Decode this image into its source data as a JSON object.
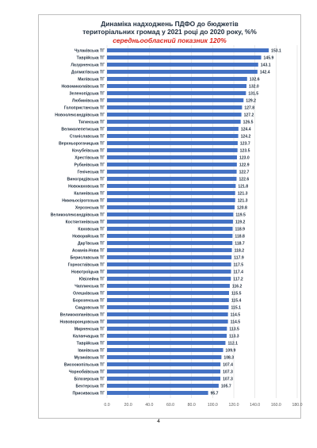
{
  "page_number": "4",
  "chart_data": {
    "type": "bar",
    "orientation": "horizontal",
    "title": "Динаміка надходжень ПДФО до бюджетів територіальних громад  у 2021 році до 2020 року, %%",
    "title_lines": [
      "Динаміка надходжень ПДФО до бюджетів",
      "територіальних громад  у 2021 році до 2020 року, %%"
    ],
    "subtitle": "середньообласний показник 120%",
    "xlabel": "",
    "ylabel": "",
    "xlim": [
      0,
      180
    ],
    "xticks": [
      "0.0",
      "20.0",
      "40.0",
      "60.0",
      "80.0",
      "100.0",
      "120.0",
      "140.0",
      "160.0",
      "180.0"
    ],
    "grid": true,
    "bar_color": "#4472c4",
    "title_color": "#1f2d3d",
    "subtitle_color": "#d9251c",
    "categories": [
      "Чулаківська ТГ",
      "Таврійська ТГ",
      "Лазурненська ТГ",
      "Долматівська ТГ",
      "Милівська ТГ",
      "Новомиколаївська ТГ",
      "Зеленопідська ТГ",
      "Любимівська ТГ",
      "Голопристанська ТГ",
      "Новоолександрівська ТГ",
      "Тягинська ТГ",
      "Великолепетиська ТГ",
      "Станіславська ТГ",
      "Верхньорогачицька ТГ",
      "Кочубеївська ТГ",
      "Хрестівська ТГ",
      "Рубанівська ТГ",
      "Генічеська ТГ",
      "Виноградівська ТГ",
      "Новокаховська ТГ",
      "Калинівська ТГ",
      "Нижньосірогозька ТГ",
      "Херсонська ТГ",
      "Великоолександрівська ТГ",
      "Костянтинівська ТГ",
      "Каховська ТГ",
      "Новорайська ТГ",
      "Дар'ївська ТГ",
      "Асканія-Нова ТГ",
      "Бериславська ТГ",
      "Горностаївська ТГ",
      "Новотроїцька ТГ",
      "Ювілейна ТГ",
      "Чаплинська ТГ",
      "Олешківська ТГ",
      "Борозенська ТГ",
      "Скадовська ТГ",
      "Великокопанівська ТГ",
      "Нововоронцовська ТГ",
      "Мирненська ТГ",
      "Каланчацька ТГ",
      "Таврійська ТГ",
      "Іванівська ТГ",
      "Музиківська ТГ",
      "Висоокопільська ТГ",
      "Чорнобаївська ТГ",
      "Білозерська ТГ",
      "Бехтерська ТГ",
      "Присиваська ТГ"
    ],
    "values": [
      153.1,
      145.9,
      143.1,
      142.4,
      132.6,
      132.0,
      131.5,
      129.2,
      127.8,
      127.2,
      126.5,
      124.4,
      124.2,
      123.7,
      123.5,
      123.0,
      122.9,
      122.7,
      122.6,
      121.8,
      121.3,
      121.3,
      120.8,
      119.5,
      119.2,
      118.9,
      118.8,
      118.7,
      118.2,
      117.9,
      117.5,
      117.4,
      117.2,
      116.2,
      115.5,
      115.4,
      115.1,
      114.5,
      114.5,
      113.5,
      113.3,
      112.1,
      109.9,
      108.3,
      107.4,
      107.3,
      107.3,
      105.7,
      95.7
    ],
    "value_labels": [
      "153.1",
      "145.9",
      "143.1",
      "142.4",
      "132.6",
      "132.0",
      "131.5",
      "129.2",
      "127.8",
      "127.2",
      "126.5",
      "124.4",
      "124.2",
      "123.7",
      "123.5",
      "123.0",
      "122.9",
      "122.7",
      "122.6",
      "121.8",
      "121.3",
      "121.3",
      "120.8",
      "119.5",
      "119.2",
      "118.9",
      "118.8",
      "118.7",
      "118.2",
      "117.9",
      "117.5",
      "117.4",
      "117.2",
      "116.2",
      "115.5",
      "115.4",
      "115.1",
      "114.5",
      "114.5",
      "113.5",
      "113.3",
      "112.1",
      "109.9",
      "108.3",
      "107.4",
      "107.3",
      "107.3",
      "105.7",
      "95.7"
    ]
  }
}
